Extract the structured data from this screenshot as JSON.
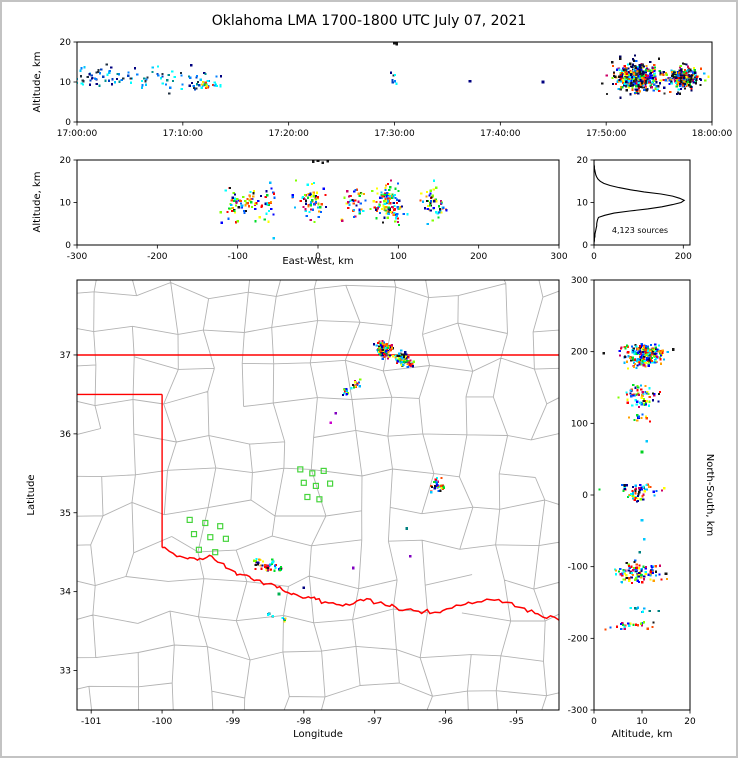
{
  "title": "Oklahoma LMA 1700-1800 UTC July 07, 2021",
  "panels": {
    "time_height": {
      "ylabel": "Altitude, km",
      "xticks": [
        {
          "v": 0,
          "l": "17:00:00"
        },
        {
          "v": 600,
          "l": "17:10:00"
        },
        {
          "v": 1200,
          "l": "17:20:00"
        },
        {
          "v": 1800,
          "l": "17:30:00"
        },
        {
          "v": 2400,
          "l": "17:40:00"
        },
        {
          "v": 3000,
          "l": "17:50:00"
        },
        {
          "v": 3600,
          "l": "18:00:00"
        }
      ],
      "yticks": [
        {
          "v": 0,
          "l": "0"
        },
        {
          "v": 10,
          "l": "10"
        },
        {
          "v": 20,
          "l": "20"
        }
      ]
    },
    "ew_height": {
      "xlabel": "East-West, km",
      "ylabel": "Altitude, km",
      "xticks": [
        {
          "v": -300,
          "l": "-300"
        },
        {
          "v": -200,
          "l": "-200"
        },
        {
          "v": -100,
          "l": "-100"
        },
        {
          "v": 0,
          "l": "0"
        },
        {
          "v": 100,
          "l": "100"
        },
        {
          "v": 200,
          "l": "200"
        },
        {
          "v": 300,
          "l": "300"
        }
      ],
      "yticks": [
        {
          "v": 0,
          "l": "0"
        },
        {
          "v": 10,
          "l": "10"
        },
        {
          "v": 20,
          "l": "20"
        }
      ]
    },
    "hist": {
      "annotation": "4,123 sources",
      "xticks": [
        {
          "v": 0,
          "l": "0"
        },
        {
          "v": 200,
          "l": "200"
        }
      ],
      "yticks": [
        {
          "v": 0,
          "l": "0"
        },
        {
          "v": 10,
          "l": "10"
        },
        {
          "v": 20,
          "l": "20"
        }
      ]
    },
    "map": {
      "xlabel": "Longitude",
      "ylabel": "Latitude",
      "xticks": [
        {
          "v": -101,
          "l": "-101"
        },
        {
          "v": -100,
          "l": "-100"
        },
        {
          "v": -99,
          "l": "-99"
        },
        {
          "v": -98,
          "l": "-98"
        },
        {
          "v": -97,
          "l": "-97"
        },
        {
          "v": -96,
          "l": "-96"
        },
        {
          "v": -95,
          "l": "-95"
        }
      ],
      "yticks": [
        {
          "v": 33,
          "l": "33"
        },
        {
          "v": 34,
          "l": "34"
        },
        {
          "v": 35,
          "l": "35"
        },
        {
          "v": 36,
          "l": "36"
        },
        {
          "v": 37,
          "l": "37"
        }
      ]
    },
    "ns": {
      "xlabel": "Altitude, km",
      "ylabel": "North-South, km",
      "xticks": [
        {
          "v": 0,
          "l": "0"
        },
        {
          "v": 10,
          "l": "10"
        },
        {
          "v": 20,
          "l": "20"
        }
      ],
      "yticks": [
        {
          "v": 300,
          "l": "300"
        },
        {
          "v": 200,
          "l": "200"
        },
        {
          "v": 100,
          "l": "100"
        },
        {
          "v": 0,
          "l": "0"
        },
        {
          "v": -100,
          "l": "-100"
        },
        {
          "v": -200,
          "l": "-200"
        },
        {
          "v": -300,
          "l": "-300"
        }
      ]
    }
  },
  "palettes": {
    "storm": [
      "#000090",
      "#0000ff",
      "#0060ff",
      "#00b8ff",
      "#00ffff",
      "#00dc28",
      "#80ff00",
      "#ffff00",
      "#ffa000",
      "#ff4800",
      "#ff0000",
      "#cc0066",
      "#151515"
    ],
    "early": [
      "#000080",
      "#0040c0",
      "#0080ff",
      "#00c8ff",
      "#00ffff",
      "#009090",
      "#203040"
    ],
    "accent": [
      "#00d020",
      "#ff3000",
      "#ffe000",
      "#00ffff",
      "#0080ff"
    ],
    "fringe": [
      "#151515",
      "#000060",
      "#303030"
    ],
    "cool": [
      "#00ffff",
      "#00b0ff",
      "#008080"
    ]
  },
  "chart_data": [
    {
      "id": "time_height",
      "type": "scatter",
      "x_units": "seconds after 17:00:00 UTC",
      "xlim": [
        0,
        3600
      ],
      "ylim": [
        0,
        20
      ],
      "clusters": [
        {
          "x": 35,
          "y": 11.6,
          "sx": 28,
          "sy": 1.7,
          "n": 12,
          "palette": "early"
        },
        {
          "x": 95,
          "y": 10.7,
          "sx": 22,
          "sy": 0.9,
          "n": 14,
          "palette": "early"
        },
        {
          "x": 160,
          "y": 12.1,
          "sx": 28,
          "sy": 1.2,
          "n": 9,
          "palette": "early"
        },
        {
          "x": 235,
          "y": 10.6,
          "sx": 26,
          "sy": 1.2,
          "n": 10,
          "palette": "early"
        },
        {
          "x": 305,
          "y": 11.3,
          "sx": 28,
          "sy": 1.5,
          "n": 8,
          "palette": "early"
        },
        {
          "x": 385,
          "y": 9.9,
          "sx": 20,
          "sy": 0.9,
          "n": 7,
          "palette": "early"
        },
        {
          "x": 455,
          "y": 12.4,
          "sx": 24,
          "sy": 1.1,
          "n": 8,
          "palette": "early"
        },
        {
          "x": 525,
          "y": 10.4,
          "sx": 22,
          "sy": 1.3,
          "n": 9,
          "palette": "early"
        },
        {
          "x": 610,
          "y": 11.0,
          "sx": 26,
          "sy": 1.6,
          "n": 7,
          "palette": "early"
        },
        {
          "x": 665,
          "y": 9.2,
          "sx": 20,
          "sy": 0.9,
          "n": 9,
          "palette": "early"
        },
        {
          "x": 710,
          "y": 10.4,
          "sx": 16,
          "sy": 1.4,
          "n": 10,
          "palette": "early"
        },
        {
          "x": 735,
          "y": 8.9,
          "sx": 18,
          "sy": 0.7,
          "n": 12,
          "palette": "accent"
        },
        {
          "x": 790,
          "y": 9.6,
          "sx": 16,
          "sy": 0.9,
          "n": 8,
          "palette": "early"
        },
        {
          "x": 1800,
          "y": 10.9,
          "sx": 10,
          "sy": 1.1,
          "n": 7,
          "palette": "early"
        },
        {
          "x": 3180,
          "y": 11.0,
          "sx": 58,
          "sy": 1.5,
          "n": 430,
          "palette": "storm"
        },
        {
          "x": 3180,
          "y": 11.0,
          "sx": 64,
          "sy": 2.7,
          "n": 70,
          "palette": "fringe"
        },
        {
          "x": 3445,
          "y": 11.0,
          "sx": 40,
          "sy": 1.1,
          "n": 260,
          "palette": "storm"
        },
        {
          "x": 3445,
          "y": 11.0,
          "sx": 46,
          "sy": 2.1,
          "n": 40,
          "palette": "fringe"
        }
      ],
      "points": [
        {
          "x": 2228,
          "y": 10.2,
          "c": "#000080"
        },
        {
          "x": 2642,
          "y": 10.0,
          "c": "#000080"
        },
        {
          "x": 1800,
          "y": 19.7,
          "c": "#151515"
        },
        {
          "x": 1812,
          "y": 19.5,
          "c": "#151515"
        },
        {
          "x": 728,
          "y": 9.3,
          "c": "#00d020"
        },
        {
          "x": 742,
          "y": 8.7,
          "c": "#ff3000"
        },
        {
          "x": 735,
          "y": 9.0,
          "c": "#ffe000"
        }
      ]
    },
    {
      "id": "ew_height",
      "type": "scatter",
      "xlim": [
        -300,
        300
      ],
      "ylim": [
        0,
        20
      ],
      "clusters": [
        {
          "x": -100,
          "y": 9.3,
          "sx": 9,
          "sy": 2.0,
          "n": 45,
          "palette": "storm"
        },
        {
          "x": -84,
          "y": 10.5,
          "sx": 5,
          "sy": 1.5,
          "n": 20,
          "palette": "storm"
        },
        {
          "x": -63,
          "y": 10.2,
          "sx": 6,
          "sy": 1.8,
          "n": 28,
          "palette": "storm"
        },
        {
          "x": -12,
          "y": 10.6,
          "sx": 8,
          "sy": 1.9,
          "n": 48,
          "palette": "storm"
        },
        {
          "x": 2,
          "y": 9.6,
          "sx": 5,
          "sy": 1.4,
          "n": 18,
          "palette": "storm"
        },
        {
          "x": 45,
          "y": 10.2,
          "sx": 7,
          "sy": 1.8,
          "n": 38,
          "palette": "storm"
        },
        {
          "x": 84,
          "y": 10.3,
          "sx": 8,
          "sy": 2.2,
          "n": 95,
          "palette": "storm"
        },
        {
          "x": 98,
          "y": 8.2,
          "sx": 5,
          "sy": 1.5,
          "n": 28,
          "palette": "storm"
        },
        {
          "x": 140,
          "y": 10.4,
          "sx": 6,
          "sy": 2.0,
          "n": 42,
          "palette": "storm"
        },
        {
          "x": 153,
          "y": 9.0,
          "sx": 4,
          "sy": 1.2,
          "n": 16,
          "palette": "storm"
        }
      ],
      "points": [
        {
          "x": -6,
          "y": 19.6,
          "c": "#151515"
        },
        {
          "x": 0,
          "y": 19.8,
          "c": "#151515"
        },
        {
          "x": 6,
          "y": 19.4,
          "c": "#151515"
        },
        {
          "x": 12,
          "y": 19.7,
          "c": "#151515"
        },
        {
          "x": -55,
          "y": 1.6,
          "c": "#00c8ff"
        },
        {
          "x": -120,
          "y": 5.2,
          "c": "#0000ff"
        }
      ]
    },
    {
      "id": "hist",
      "type": "line",
      "orientation": "count vs altitude",
      "xlim": [
        0,
        215
      ],
      "ylim": [
        0,
        20
      ],
      "total_sources_label": "4,123 sources",
      "alt_step": 0.5,
      "counts": [
        0,
        0,
        1,
        1,
        2,
        2,
        3,
        4,
        5,
        6,
        6,
        7,
        8,
        10,
        24,
        45,
        80,
        120,
        152,
        176,
        195,
        202,
        192,
        176,
        150,
        112,
        82,
        56,
        36,
        22,
        14,
        9,
        6,
        4,
        3,
        2,
        1,
        1,
        0,
        0,
        0
      ]
    },
    {
      "id": "map",
      "type": "scatter",
      "xlim": [
        -101.2,
        -94.4
      ],
      "ylim": [
        32.5,
        37.95
      ],
      "county_color": "#b3b3b3",
      "boundary_color": "#ff0000",
      "station_color": "#46d43c",
      "clusters": [
        {
          "x": -96.86,
          "y": 37.07,
          "sx": 0.05,
          "sy": 0.045,
          "n": 150,
          "palette": "storm"
        },
        {
          "x": -96.62,
          "y": 36.95,
          "sx": 0.05,
          "sy": 0.04,
          "n": 80,
          "palette": "storm"
        },
        {
          "x": -96.5,
          "y": 36.88,
          "sx": 0.03,
          "sy": 0.025,
          "n": 18,
          "palette": "storm"
        },
        {
          "x": -97.28,
          "y": 36.62,
          "sx": 0.035,
          "sy": 0.03,
          "n": 16,
          "palette": "storm"
        },
        {
          "x": -97.42,
          "y": 36.53,
          "sx": 0.03,
          "sy": 0.025,
          "n": 10,
          "palette": "storm"
        },
        {
          "x": -96.1,
          "y": 35.34,
          "sx": 0.05,
          "sy": 0.035,
          "n": 34,
          "palette": "storm"
        },
        {
          "x": -98.66,
          "y": 34.36,
          "sx": 0.035,
          "sy": 0.03,
          "n": 12,
          "palette": "storm"
        },
        {
          "x": -98.53,
          "y": 34.31,
          "sx": 0.04,
          "sy": 0.03,
          "n": 18,
          "palette": "storm"
        },
        {
          "x": -98.42,
          "y": 34.36,
          "sx": 0.03,
          "sy": 0.025,
          "n": 10,
          "palette": "storm"
        },
        {
          "x": -98.33,
          "y": 34.29,
          "sx": 0.025,
          "sy": 0.02,
          "n": 8,
          "palette": "storm"
        },
        {
          "x": -98.5,
          "y": 33.7,
          "sx": 0.03,
          "sy": 0.02,
          "n": 7,
          "palette": "cool"
        },
        {
          "x": -98.28,
          "y": 33.64,
          "sx": 0.025,
          "sy": 0.02,
          "n": 6,
          "palette": "accent"
        }
      ],
      "points": [
        {
          "x": -97.55,
          "y": 36.26,
          "c": "#8000c0"
        },
        {
          "x": -97.62,
          "y": 36.14,
          "c": "#cc00cc"
        },
        {
          "x": -98.0,
          "y": 34.05,
          "c": "#000080"
        },
        {
          "x": -97.3,
          "y": 34.3,
          "c": "#8000c0"
        },
        {
          "x": -96.55,
          "y": 34.8,
          "c": "#008080"
        },
        {
          "x": -96.5,
          "y": 34.45,
          "c": "#8000c0"
        },
        {
          "x": -96.2,
          "y": 35.26,
          "c": "#00c8ff"
        },
        {
          "x": -98.35,
          "y": 33.97,
          "c": "#00b050"
        }
      ],
      "stations": [
        [
          -98.05,
          35.55
        ],
        [
          -97.88,
          35.5
        ],
        [
          -97.72,
          35.53
        ],
        [
          -98.0,
          35.38
        ],
        [
          -97.83,
          35.34
        ],
        [
          -97.63,
          35.37
        ],
        [
          -97.95,
          35.2
        ],
        [
          -97.78,
          35.17
        ],
        [
          -99.61,
          34.91
        ],
        [
          -99.39,
          34.87
        ],
        [
          -99.18,
          34.83
        ],
        [
          -99.55,
          34.73
        ],
        [
          -99.32,
          34.69
        ],
        [
          -99.1,
          34.67
        ],
        [
          -99.48,
          34.53
        ],
        [
          -99.25,
          34.5
        ]
      ],
      "state_border": [
        [
          [
            -101.2,
            37.0
          ],
          [
            -94.4,
            37.0
          ]
        ],
        [
          [
            -101.2,
            36.5
          ],
          [
            -100.0,
            36.5
          ]
        ],
        [
          [
            -100.0,
            36.5
          ],
          [
            -100.0,
            34.56
          ]
        ]
      ],
      "red_river": [
        [
          -100.0,
          34.56
        ],
        [
          -99.75,
          34.45
        ],
        [
          -99.5,
          34.4
        ],
        [
          -99.3,
          34.45
        ],
        [
          -99.1,
          34.3
        ],
        [
          -98.9,
          34.22
        ],
        [
          -98.7,
          34.14
        ],
        [
          -98.5,
          34.1
        ],
        [
          -98.3,
          34.02
        ],
        [
          -98.1,
          33.96
        ],
        [
          -97.9,
          33.92
        ],
        [
          -97.7,
          33.87
        ],
        [
          -97.45,
          33.82
        ],
        [
          -97.2,
          33.9
        ],
        [
          -96.95,
          33.86
        ],
        [
          -96.7,
          33.8
        ],
        [
          -96.45,
          33.76
        ],
        [
          -96.15,
          33.74
        ],
        [
          -95.85,
          33.83
        ],
        [
          -95.55,
          33.87
        ],
        [
          -95.25,
          33.9
        ],
        [
          -94.95,
          33.8
        ],
        [
          -94.7,
          33.72
        ],
        [
          -94.4,
          33.64
        ]
      ]
    },
    {
      "id": "ns",
      "type": "scatter",
      "xlim": [
        0,
        20
      ],
      "ylim": [
        -300,
        300
      ],
      "clusters": [
        {
          "x": 10.5,
          "y": 200,
          "sx": 2.0,
          "sy": 5,
          "n": 170,
          "palette": "storm"
        },
        {
          "x": 10.5,
          "y": 186,
          "sx": 1.8,
          "sy": 4,
          "n": 70,
          "palette": "storm"
        },
        {
          "x": 10.0,
          "y": 143,
          "sx": 1.9,
          "sy": 5,
          "n": 48,
          "palette": "storm"
        },
        {
          "x": 10.2,
          "y": 128,
          "sx": 1.5,
          "sy": 3,
          "n": 18,
          "palette": "storm"
        },
        {
          "x": 10.0,
          "y": 107,
          "sx": 1.4,
          "sy": 2.5,
          "n": 12,
          "palette": "storm"
        },
        {
          "x": 9.6,
          "y": 8,
          "sx": 2.2,
          "sy": 5,
          "n": 45,
          "palette": "storm"
        },
        {
          "x": 9.0,
          "y": -4,
          "sx": 1.5,
          "sy": 3,
          "n": 16,
          "palette": "storm"
        },
        {
          "x": 9.3,
          "y": -108,
          "sx": 2.6,
          "sy": 5.5,
          "n": 85,
          "palette": "storm"
        },
        {
          "x": 8.5,
          "y": -118,
          "sx": 1.8,
          "sy": 3,
          "n": 20,
          "palette": "storm"
        },
        {
          "x": 10.0,
          "y": -160,
          "sx": 1.5,
          "sy": 3,
          "n": 10,
          "palette": "cool"
        },
        {
          "x": 8.0,
          "y": -182,
          "sx": 2.6,
          "sy": 3,
          "n": 24,
          "palette": "storm"
        }
      ],
      "points": [
        {
          "x": 10,
          "y": -35,
          "c": "#00c8ff"
        },
        {
          "x": 10.5,
          "y": -62,
          "c": "#00c8ff"
        },
        {
          "x": 9.5,
          "y": -80,
          "c": "#008080"
        },
        {
          "x": 10,
          "y": 60,
          "c": "#00d020"
        },
        {
          "x": 11,
          "y": 75,
          "c": "#00c8ff"
        },
        {
          "x": 2,
          "y": 198,
          "c": "#151515"
        },
        {
          "x": 16.5,
          "y": 203,
          "c": "#151515"
        },
        {
          "x": 15,
          "y": -110,
          "c": "#151515"
        }
      ]
    }
  ]
}
